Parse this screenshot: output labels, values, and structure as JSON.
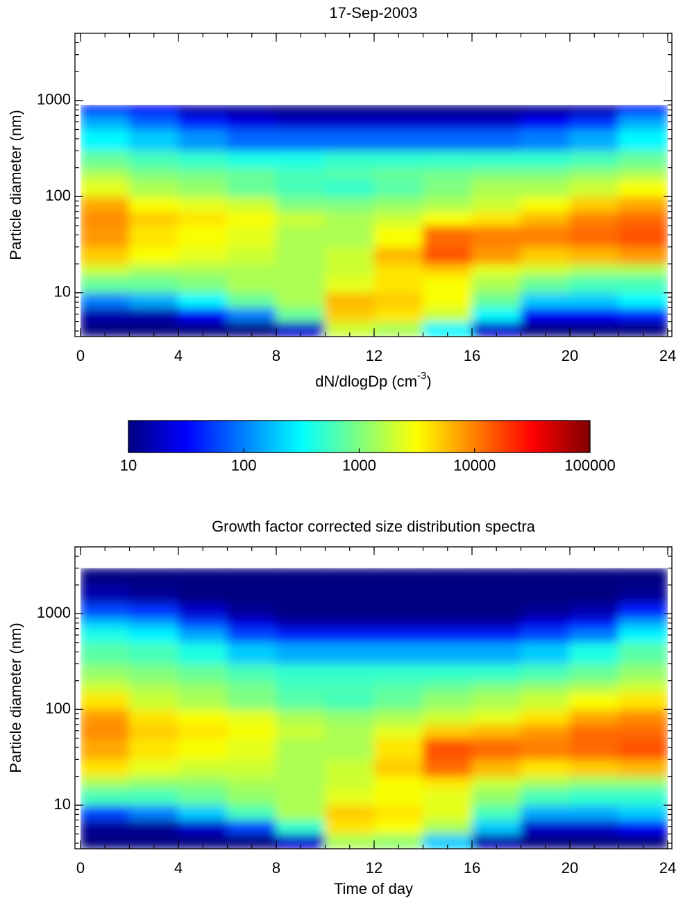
{
  "chart_data": [
    {
      "type": "heatmap",
      "title": "17-Sep-2003",
      "ylabel": "Particle diameter (nm)",
      "xlim": [
        0,
        24
      ],
      "xticks": [
        0,
        4,
        8,
        12,
        16,
        20,
        24
      ],
      "ylim": [
        3.5,
        5000
      ],
      "yticks": [
        10,
        100,
        1000
      ],
      "ylog": true,
      "colormap": "jet",
      "xbins": [
        0,
        2,
        4,
        6,
        8,
        10,
        12,
        14,
        16,
        18,
        20,
        22,
        24
      ],
      "ybins": [
        3.5,
        5,
        7,
        10,
        15,
        20,
        30,
        50,
        70,
        100,
        150,
        200,
        300,
        500,
        700,
        900
      ],
      "z": [
        [
          10,
          10,
          10,
          10,
          20,
          2000,
          1500,
          300,
          20,
          10,
          10,
          10
        ],
        [
          15,
          15,
          30,
          100,
          800,
          5000,
          4000,
          2000,
          300,
          30,
          30,
          40
        ],
        [
          100,
          150,
          300,
          800,
          1500,
          6000,
          5000,
          3000,
          800,
          200,
          200,
          300
        ],
        [
          800,
          800,
          1000,
          1500,
          1500,
          2500,
          4000,
          3000,
          1500,
          800,
          600,
          600
        ],
        [
          2000,
          1500,
          1500,
          1500,
          1500,
          2000,
          4000,
          5000,
          2500,
          2000,
          1500,
          1500
        ],
        [
          5000,
          3000,
          2500,
          2000,
          1500,
          2000,
          6000,
          15000,
          8000,
          5000,
          6000,
          8000
        ],
        [
          8000,
          4000,
          3000,
          2500,
          1500,
          1500,
          3000,
          12000,
          10000,
          10000,
          12000,
          15000
        ],
        [
          9000,
          5000,
          4000,
          3000,
          2000,
          1500,
          2000,
          3000,
          4000,
          6000,
          10000,
          12000
        ],
        [
          7000,
          3000,
          2500,
          2000,
          1000,
          1000,
          1200,
          1500,
          2000,
          3000,
          5000,
          7000
        ],
        [
          2500,
          1500,
          1200,
          800,
          600,
          500,
          700,
          1000,
          1500,
          1500,
          2000,
          3000
        ],
        [
          1500,
          1000,
          900,
          800,
          600,
          700,
          800,
          900,
          1000,
          1000,
          1200,
          1500
        ],
        [
          800,
          600,
          500,
          400,
          400,
          500,
          500,
          500,
          500,
          500,
          600,
          800
        ],
        [
          300,
          200,
          120,
          80,
          80,
          80,
          80,
          80,
          80,
          100,
          150,
          300
        ],
        [
          150,
          80,
          40,
          25,
          20,
          20,
          20,
          20,
          20,
          30,
          50,
          150
        ],
        [
          50,
          30,
          15,
          12,
          10,
          10,
          10,
          10,
          10,
          12,
          15,
          40
        ]
      ]
    },
    {
      "type": "colorbar",
      "label": [
        "dN/dlogDp (cm",
        "-3",
        ")"
      ],
      "colormap": "jet",
      "zlim": [
        10,
        100000
      ],
      "zticks": [
        10,
        100,
        1000,
        10000,
        100000
      ],
      "zlog": true
    },
    {
      "type": "heatmap",
      "title": "Growth factor corrected size distribution spectra",
      "ylabel": "Particle diameter (nm)",
      "xlabel": "Time of day",
      "xlim": [
        0,
        24
      ],
      "xticks": [
        0,
        4,
        8,
        12,
        16,
        20,
        24
      ],
      "ylim": [
        3.5,
        5000
      ],
      "yticks": [
        10,
        100,
        1000
      ],
      "ylog": true,
      "colormap": "jet",
      "xbins": [
        0,
        2,
        4,
        6,
        8,
        10,
        12,
        14,
        16,
        18,
        20,
        22,
        24
      ],
      "ybins": [
        3.5,
        5,
        7,
        10,
        15,
        20,
        30,
        50,
        70,
        100,
        150,
        200,
        300,
        500,
        700,
        900,
        1300,
        2000,
        3000
      ],
      "z": [
        [
          10,
          10,
          10,
          10,
          20,
          1500,
          1200,
          200,
          15,
          10,
          10,
          10
        ],
        [
          12,
          12,
          20,
          60,
          500,
          4000,
          3000,
          1500,
          200,
          20,
          20,
          30
        ],
        [
          60,
          100,
          200,
          600,
          1500,
          5000,
          4000,
          2500,
          600,
          150,
          150,
          200
        ],
        [
          600,
          600,
          800,
          1200,
          1500,
          2500,
          3000,
          2500,
          1200,
          600,
          500,
          500
        ],
        [
          1500,
          1200,
          1200,
          1500,
          1500,
          2000,
          3000,
          4000,
          2000,
          1500,
          1200,
          1200
        ],
        [
          4000,
          2500,
          2000,
          2000,
          1500,
          2000,
          5000,
          12000,
          6000,
          4000,
          5000,
          6000
        ],
        [
          7000,
          4000,
          3000,
          2500,
          1500,
          1500,
          4000,
          15000,
          12000,
          10000,
          12000,
          15000
        ],
        [
          9000,
          5000,
          4000,
          3000,
          2000,
          1500,
          2500,
          5000,
          6000,
          8000,
          12000,
          12000
        ],
        [
          8000,
          4000,
          3000,
          2500,
          1500,
          1200,
          1500,
          2000,
          2500,
          4000,
          7000,
          9000
        ],
        [
          4000,
          2000,
          1500,
          1000,
          700,
          600,
          800,
          1200,
          1500,
          2000,
          3000,
          4000
        ],
        [
          2000,
          1500,
          1200,
          900,
          600,
          600,
          700,
          800,
          1000,
          1200,
          1500,
          2000
        ],
        [
          1200,
          1000,
          800,
          600,
          500,
          500,
          500,
          500,
          500,
          600,
          800,
          1200
        ],
        [
          700,
          600,
          400,
          200,
          150,
          150,
          150,
          150,
          150,
          200,
          400,
          700
        ],
        [
          400,
          300,
          150,
          60,
          40,
          40,
          40,
          40,
          40,
          60,
          100,
          300
        ],
        [
          200,
          150,
          60,
          25,
          15,
          15,
          15,
          15,
          15,
          25,
          40,
          150
        ],
        [
          60,
          50,
          20,
          12,
          10,
          10,
          10,
          10,
          10,
          12,
          15,
          40
        ],
        [
          15,
          12,
          10,
          10,
          10,
          10,
          10,
          10,
          10,
          10,
          10,
          12
        ],
        [
          10,
          10,
          10,
          10,
          10,
          10,
          10,
          10,
          10,
          10,
          10,
          10
        ]
      ]
    }
  ]
}
